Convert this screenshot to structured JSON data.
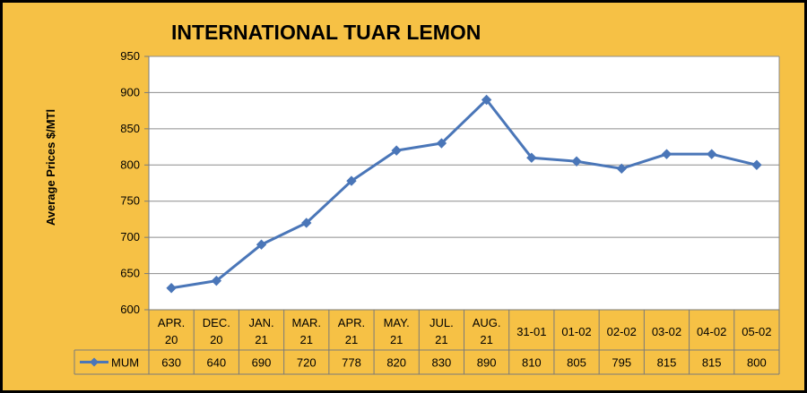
{
  "chart_data": {
    "type": "line",
    "title": "INTERNATIONAL TUAR LEMON",
    "xlabel": "",
    "ylabel": "Average Prices $/MTl",
    "ylim": [
      600,
      950
    ],
    "yticks": [
      "600",
      "650",
      "700",
      "750",
      "800",
      "850",
      "900",
      "950"
    ],
    "grid": true,
    "legend": "data-table-left",
    "categories": [
      [
        "APR.",
        "20"
      ],
      [
        "DEC.",
        "20"
      ],
      [
        "JAN.",
        "21"
      ],
      [
        "MAR.",
        "21"
      ],
      [
        "APR.",
        "21"
      ],
      [
        "MAY.",
        "21"
      ],
      [
        "JUL.",
        "21"
      ],
      [
        "AUG.",
        "21"
      ],
      [
        "31-01"
      ],
      [
        "01-02"
      ],
      [
        "02-02"
      ],
      [
        "03-02"
      ],
      [
        "04-02"
      ],
      [
        "05-02"
      ]
    ],
    "series": [
      {
        "name": "MUM",
        "color": "#4a76b8",
        "values": [
          630,
          640,
          690,
          720,
          778,
          820,
          830,
          890,
          810,
          805,
          795,
          815,
          815,
          800
        ],
        "labels": [
          "630",
          "640",
          "690",
          "720",
          "778",
          "820",
          "830",
          "890",
          "810",
          "805",
          "795",
          "815",
          "815",
          "800"
        ]
      }
    ]
  }
}
